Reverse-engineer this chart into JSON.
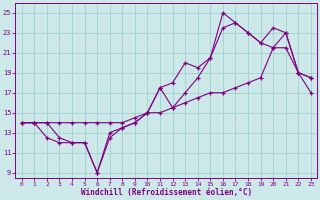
{
  "xlabel": "Windchill (Refroidissement éolien,°C)",
  "bg_color": "#cce8e8",
  "line_color": "#800080",
  "grid_color": "#99cccc",
  "xlim": [
    -0.5,
    23.5
  ],
  "ylim": [
    8.5,
    26
  ],
  "xticks": [
    0,
    1,
    2,
    3,
    4,
    5,
    6,
    7,
    8,
    9,
    10,
    11,
    12,
    13,
    14,
    15,
    16,
    17,
    18,
    19,
    20,
    21,
    22,
    23
  ],
  "yticks": [
    9,
    11,
    13,
    15,
    17,
    19,
    21,
    23,
    25
  ],
  "line1_x": [
    0,
    1,
    2,
    3,
    4,
    5,
    6,
    7,
    8,
    9,
    10,
    11,
    12,
    13,
    14,
    15,
    16,
    17,
    18,
    19,
    20,
    21,
    22,
    23
  ],
  "line1_y": [
    14,
    14,
    14,
    12.5,
    12,
    12,
    9,
    12.5,
    13.5,
    14,
    15,
    17.5,
    18,
    20,
    19.5,
    20.5,
    25,
    24,
    23,
    22,
    23.5,
    23,
    19,
    18.5
  ],
  "line2_x": [
    0,
    1,
    2,
    3,
    4,
    5,
    6,
    7,
    8,
    9,
    10,
    11,
    12,
    13,
    14,
    15,
    16,
    17,
    18,
    19,
    20,
    21,
    22,
    23
  ],
  "line2_y": [
    14,
    14,
    14,
    14,
    14,
    14,
    14,
    14,
    14,
    14.5,
    15,
    15,
    15.5,
    16,
    16.5,
    17,
    17,
    17.5,
    18,
    18.5,
    21.5,
    21.5,
    19,
    17
  ],
  "line3_x": [
    0,
    1,
    2,
    3,
    4,
    5,
    6,
    7,
    8,
    9,
    10,
    11,
    12,
    13,
    14,
    15,
    16,
    17,
    18,
    19,
    20,
    21,
    22,
    23
  ],
  "line3_y": [
    14,
    14,
    12.5,
    12,
    12,
    12,
    9,
    13,
    13.5,
    14,
    15,
    17.5,
    15.5,
    17,
    18.5,
    20.5,
    23.5,
    24,
    23,
    22,
    21.5,
    23,
    19,
    18.5
  ]
}
